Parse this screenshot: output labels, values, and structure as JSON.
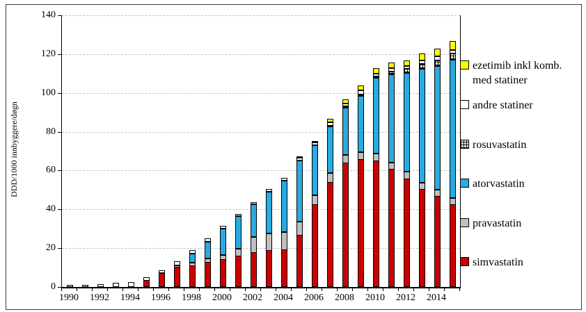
{
  "figure": {
    "title": "",
    "y_axis_title": "DDD/1000 innbyggere/døgn"
  },
  "chart_data": {
    "type": "bar",
    "stacked": true,
    "title": "",
    "xlabel": "",
    "ylabel": "DDD/1000 innbyggere/døgn",
    "ylim": [
      0,
      140
    ],
    "y_ticks": [
      0,
      20,
      40,
      60,
      80,
      100,
      120,
      140
    ],
    "grid": "horizontal dashed at every 20",
    "legend_position": "right",
    "categories": [
      1990,
      1991,
      1992,
      1993,
      1994,
      1995,
      1996,
      1997,
      1998,
      1999,
      2000,
      2001,
      2002,
      2003,
      2004,
      2005,
      2006,
      2007,
      2008,
      2009,
      2010,
      2011,
      2012,
      2013,
      2014,
      2015
    ],
    "xtick_labels": [
      "1990",
      "1992",
      "1994",
      "1996",
      "1998",
      "2000",
      "2002",
      "2004",
      "2006",
      "2008",
      "2010",
      "2012",
      "2014"
    ],
    "series_note": "stack order bottom-to-top; values in DDD/1000 inhabitants/day",
    "series": [
      {
        "key": "simvastatin",
        "name": "simvastatin",
        "color": "#CC0000",
        "pattern": "solid",
        "values": [
          0,
          0,
          0,
          0,
          0,
          3.5,
          7,
          10.5,
          11,
          13,
          14.5,
          16,
          18,
          19,
          19.5,
          27,
          42.5,
          54,
          64,
          66,
          65,
          61,
          56,
          50.5,
          47,
          42.5
        ]
      },
      {
        "key": "pravastatin",
        "name": "pravastatin",
        "color": "#BFBFBF",
        "pattern": "solid",
        "values": [
          0,
          0,
          0,
          0,
          0,
          0,
          0.5,
          1,
          2,
          2,
          2.5,
          4,
          8,
          9,
          9,
          7,
          5.3,
          5,
          4.3,
          4,
          4,
          3.6,
          3.8,
          3.6,
          3.6,
          3.6
        ]
      },
      {
        "key": "atorvastatin",
        "name": "atorvastatin",
        "color": "#29ABE2",
        "pattern": "solid",
        "values": [
          0,
          0,
          0,
          0,
          0,
          0,
          0,
          0,
          4.5,
          8.5,
          13.5,
          17,
          17,
          21.5,
          26.5,
          31.5,
          25.7,
          24,
          24.5,
          29,
          39,
          45.4,
          51,
          58.8,
          63.7,
          71.5
        ]
      },
      {
        "key": "rosuvastatin",
        "name": "rosuvastatin",
        "color": "#FFFFFF",
        "pattern": "checker",
        "values": [
          0,
          0,
          0,
          0,
          0,
          0,
          0,
          0,
          0,
          0,
          0,
          0,
          0,
          0,
          0,
          0,
          0,
          0.3,
          0.6,
          0.6,
          1,
          1.5,
          1.9,
          2.4,
          2.8,
          3.2
        ]
      },
      {
        "key": "andre-statiner",
        "name": "andre statiner",
        "color": "#FFFFFF",
        "pattern": "solid",
        "values": [
          1,
          1.2,
          1.5,
          2,
          2.5,
          2,
          1.5,
          2,
          1.7,
          2,
          1.5,
          1,
          1.2,
          1.3,
          1.5,
          1.5,
          1.5,
          1.8,
          1.6,
          2,
          1.4,
          1.7,
          1.7,
          1.9,
          2,
          1.5
        ]
      },
      {
        "key": "ezetimib",
        "name": "ezetimib inkl komb. med statiner",
        "color": "#FFFF00",
        "pattern": "solid",
        "values": [
          0,
          0,
          0,
          0,
          0,
          0,
          0,
          0,
          0,
          0,
          0,
          0,
          0,
          0,
          0,
          0.3,
          0.7,
          1.8,
          2,
          2.7,
          2.6,
          2.8,
          2.8,
          3.4,
          3.9,
          4.8
        ]
      }
    ],
    "legend_entries_top_to_bottom": [
      "ezetimib inkl komb. med statiner",
      "andre statiner",
      "rosuvastatin",
      "atorvastatin",
      "pravastatin",
      "simvastatin"
    ]
  }
}
